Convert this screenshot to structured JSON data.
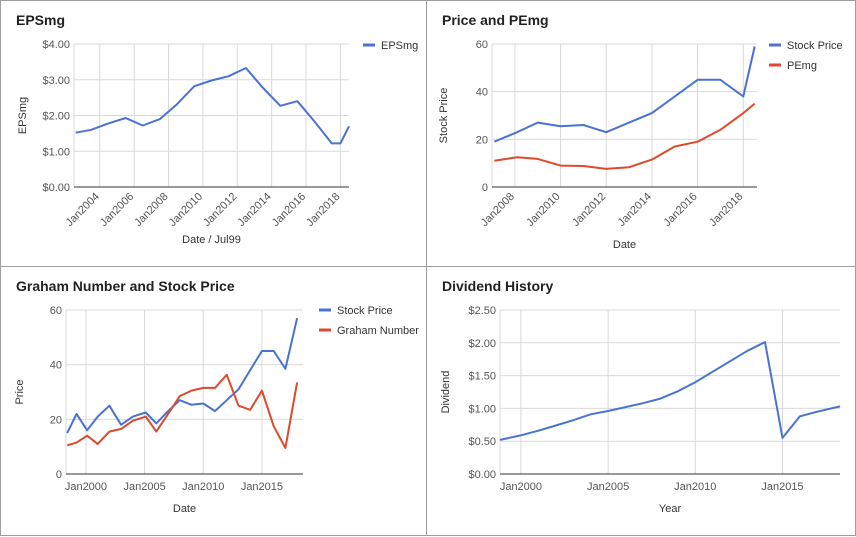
{
  "chart_data": [
    {
      "type": "line",
      "title": "EPSmg",
      "xlabel": "Date / Jul99",
      "ylabel": "EPSmg",
      "x_tick_labels": [
        "Jan2004",
        "Jan2006",
        "Jan2008",
        "Jan2010",
        "Jan2012",
        "Jan2014",
        "Jan2016",
        "Jan2018"
      ],
      "x_tick_values": [
        2004,
        2006,
        2008,
        2010,
        2012,
        2014,
        2016,
        2018
      ],
      "xlim": [
        2002.5,
        2018.5
      ],
      "y_tick_labels": [
        "$0.00",
        "$1.00",
        "$2.00",
        "$3.00",
        "$4.00"
      ],
      "ylim": [
        0,
        4
      ],
      "grid": true,
      "legend_position": "right",
      "series": [
        {
          "name": "EPSmg",
          "color": "#4a72d4",
          "x": [
            2002.6,
            2003.5,
            2004.5,
            2005.5,
            2006.5,
            2007.5,
            2008.5,
            2009.5,
            2010.5,
            2011.5,
            2012.5,
            2013.5,
            2014.5,
            2015.5,
            2016.5,
            2017.5,
            2018.0,
            2018.5
          ],
          "values": [
            1.52,
            1.6,
            1.78,
            1.93,
            1.72,
            1.9,
            2.32,
            2.82,
            2.98,
            3.1,
            3.33,
            2.77,
            2.27,
            2.4,
            1.83,
            1.22,
            1.22,
            1.7
          ]
        }
      ]
    },
    {
      "type": "line",
      "title": "Price and PEmg",
      "xlabel": "Date",
      "ylabel": "Stock Price",
      "x_tick_labels": [
        "Jan2008",
        "Jan2010",
        "Jan2012",
        "Jan2014",
        "Jan2016",
        "Jan2018"
      ],
      "x_tick_values": [
        2008,
        2010,
        2012,
        2014,
        2016,
        2018
      ],
      "xlim": [
        2007,
        2018.6
      ],
      "y_tick_labels": [
        "0",
        "20",
        "40",
        "60"
      ],
      "ylim": [
        0,
        60
      ],
      "grid": true,
      "legend_position": "right",
      "series": [
        {
          "name": "Stock Price",
          "color": "#4a72d4",
          "x": [
            2007.1,
            2008.1,
            2009.0,
            2010.0,
            2011.0,
            2012.0,
            2013.0,
            2014.0,
            2015.0,
            2016.0,
            2017.0,
            2018.0,
            2018.5
          ],
          "values": [
            19,
            23,
            27,
            25.5,
            26,
            23,
            27,
            31,
            38,
            45,
            45,
            38,
            59
          ]
        },
        {
          "name": "PEmg",
          "color": "#dc4a2d",
          "x": [
            2007.1,
            2008.1,
            2009.0,
            2010.0,
            2011.0,
            2012.0,
            2013.0,
            2014.0,
            2015.0,
            2016.0,
            2017.0,
            2018.0,
            2018.5
          ],
          "values": [
            11,
            12.5,
            11.8,
            9,
            8.8,
            7.6,
            8.3,
            11.5,
            17,
            19,
            24,
            31,
            35
          ]
        }
      ]
    },
    {
      "type": "line",
      "title": "Graham Number and Stock Price",
      "xlabel": "Date",
      "ylabel": "Price",
      "x_tick_labels": [
        "Jan2000",
        "Jan2005",
        "Jan2010",
        "Jan2015"
      ],
      "x_tick_values": [
        2000,
        2005,
        2010,
        2015
      ],
      "xlim": [
        1998.3,
        2018.5
      ],
      "y_tick_labels": [
        "0",
        "20",
        "40",
        "60"
      ],
      "ylim": [
        0,
        60
      ],
      "grid": true,
      "legend_position": "right",
      "series": [
        {
          "name": "Stock Price",
          "color": "#4a72d4",
          "x": [
            1998.4,
            1999.2,
            2000.1,
            2001.0,
            2002.0,
            2003.0,
            2004.0,
            2005.1,
            2006.0,
            2007.0,
            2008.0,
            2009.0,
            2010.0,
            2011.0,
            2012.0,
            2013.0,
            2014.0,
            2015.0,
            2016.0,
            2017.0,
            2018.0
          ],
          "values": [
            15,
            22,
            16,
            21,
            25,
            18,
            21,
            22.5,
            18.5,
            23,
            27,
            25.3,
            25.8,
            23,
            27,
            31,
            38,
            45,
            45,
            38.5,
            57
          ]
        },
        {
          "name": "Graham Number",
          "color": "#dc4a2d",
          "x": [
            1998.4,
            1999.2,
            2000.1,
            2001.0,
            2002.0,
            2003.0,
            2004.0,
            2005.1,
            2006.0,
            2007.0,
            2008.0,
            2009.0,
            2010.0,
            2011.0,
            2012.0,
            2013.0,
            2014.0,
            2015.0,
            2016.0,
            2017.0,
            2018.0
          ],
          "values": [
            10.5,
            11.5,
            14,
            11,
            15.5,
            16.5,
            19.5,
            21,
            15.5,
            22,
            28.5,
            30.5,
            31.5,
            31.5,
            36.3,
            25,
            23.5,
            30.5,
            17.5,
            9.5,
            33.5
          ]
        }
      ]
    },
    {
      "type": "line",
      "title": "Dividend History",
      "xlabel": "Year",
      "ylabel": "Dividend",
      "x_tick_labels": [
        "Jan2000",
        "Jan2005",
        "Jan2010",
        "Jan2015"
      ],
      "x_tick_values": [
        2000,
        2005,
        2010,
        2015
      ],
      "xlim": [
        1998.8,
        2018.3
      ],
      "y_tick_labels": [
        "$0.00",
        "$0.50",
        "$1.00",
        "$1.50",
        "$2.00",
        "$2.50"
      ],
      "ylim": [
        0,
        2.5
      ],
      "grid": true,
      "legend_position": "none",
      "series": [
        {
          "name": "Dividend",
          "color": "#4a72d4",
          "x": [
            1998.8,
            2000.0,
            2001.0,
            2002.0,
            2003.0,
            2004.0,
            2005.0,
            2006.0,
            2007.0,
            2008.0,
            2009.0,
            2010.0,
            2011.0,
            2012.0,
            2013.0,
            2014.0,
            2015.0,
            2016.0,
            2017.0,
            2018.3
          ],
          "values": [
            0.52,
            0.59,
            0.66,
            0.74,
            0.82,
            0.91,
            0.96,
            1.02,
            1.08,
            1.15,
            1.26,
            1.4,
            1.56,
            1.72,
            1.88,
            2.01,
            0.55,
            0.88,
            0.95,
            1.03
          ]
        }
      ]
    }
  ]
}
